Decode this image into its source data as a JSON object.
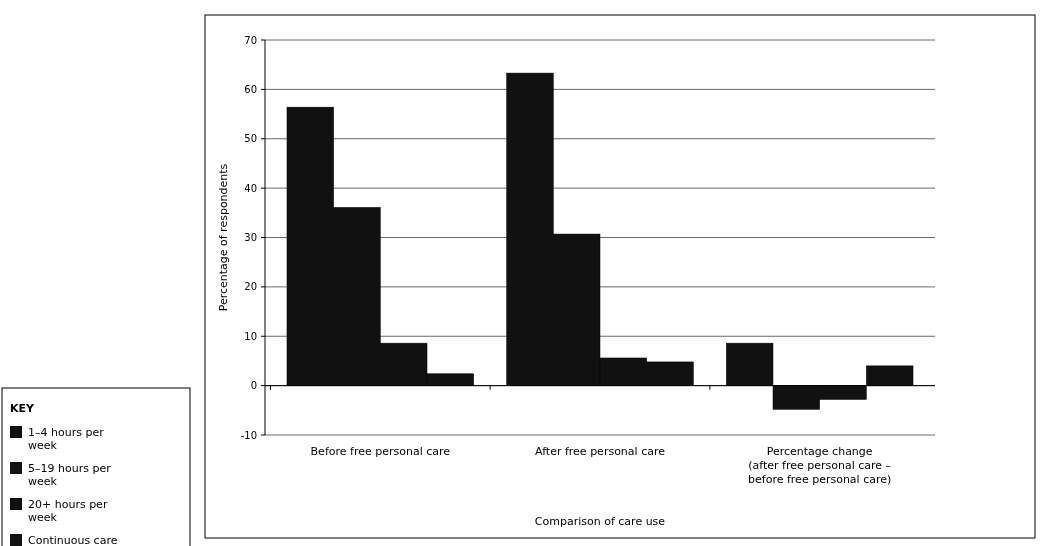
{
  "chart_data": {
    "type": "bar",
    "xlabel": "Comparison of care use",
    "ylabel": "Percentage of respondents",
    "legend_title": "KEY",
    "categories": [
      "Before free personal care",
      "After free personal care",
      "Percentage change\n(after free personal care –\nbefore free personal care)"
    ],
    "series": [
      {
        "name": "1–4 hours per week",
        "color": "#111111",
        "values": [
          56.4,
          63.3,
          8.6
        ]
      },
      {
        "name": "5–19 hours per week",
        "color": "#111111",
        "values": [
          36.1,
          30.7,
          -4.8
        ]
      },
      {
        "name": "20+ hours per week",
        "color": "#111111",
        "values": [
          8.6,
          5.6,
          -2.8
        ]
      },
      {
        "name": "Continuous care",
        "color": "#111111",
        "values": [
          2.4,
          4.8,
          4
        ]
      }
    ],
    "ylim": [
      -10,
      70
    ],
    "yticks": [
      -10,
      0,
      10,
      20,
      30,
      40,
      50,
      60,
      70
    ],
    "grid": "y",
    "legend": "left"
  }
}
